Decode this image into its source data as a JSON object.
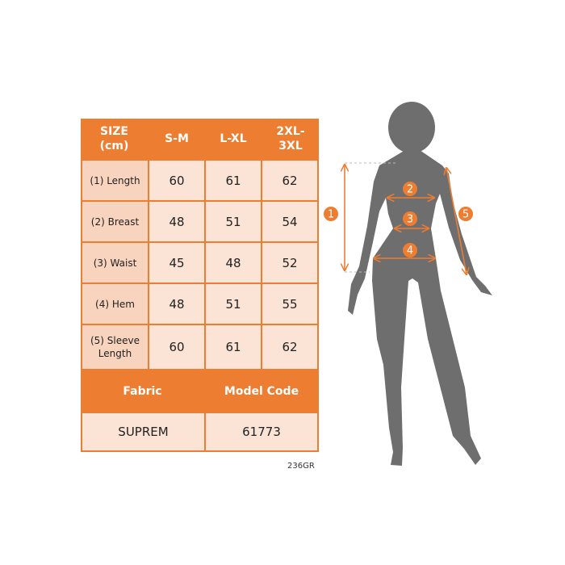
{
  "table": {
    "header": [
      "SIZE\n(cm)",
      "S-M",
      "L-XL",
      "2XL-\n3XL"
    ],
    "rows": [
      {
        "label": "(1) Length",
        "values": [
          "60",
          "61",
          "62"
        ]
      },
      {
        "label": "(2) Breast",
        "values": [
          "48",
          "51",
          "54"
        ]
      },
      {
        "label": "(3) Waist",
        "values": [
          "45",
          "48",
          "52"
        ]
      },
      {
        "label": "(4) Hem",
        "values": [
          "48",
          "51",
          "55"
        ]
      },
      {
        "label": "(5) Sleeve\nLength",
        "values": [
          "60",
          "61",
          "62"
        ]
      }
    ],
    "info_header": [
      "Fabric",
      "Model Code"
    ],
    "info_values": [
      "SUPREM",
      "61773"
    ]
  },
  "product_code": "236GR",
  "figure": {
    "markers": [
      "1",
      "2",
      "3",
      "4",
      "5"
    ]
  },
  "colors": {
    "accent": "#ED7D31",
    "label_fill": "#F8D3BE",
    "value_fill": "#FBE3D6",
    "silhouette": "#6E6E6E"
  }
}
